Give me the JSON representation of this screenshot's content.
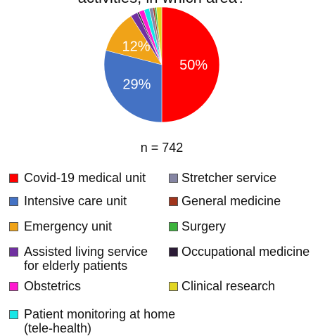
{
  "chart_data": {
    "type": "pie",
    "title": "activities, in which area?",
    "subtitle": "n = 742",
    "categories": [
      "Covid-19 medical unit",
      "Intensive care unit",
      "Emergency unit",
      "Assisted living service\nfor elderly patients",
      "Occupational medicine",
      "Obstetrics",
      "Patient monitoring at home\n(tele-health)",
      "Stretcher service",
      "General medicine",
      "Surgery",
      "Clinical research"
    ],
    "values": [
      50,
      29,
      12,
      2,
      0.5,
      1.5,
      1.5,
      1,
      0.5,
      0.5,
      1.5
    ],
    "value_labels": [
      "50%",
      "29%",
      "12%",
      null,
      null,
      null,
      null,
      null,
      null,
      null,
      null
    ],
    "colors": [
      "#ff0000",
      "#4472c4",
      "#f0a318",
      "#7030a0",
      "#2b1b36",
      "#ff1ad0",
      "#16e6e6",
      "#8585a3",
      "#a0341c",
      "#3cb33c",
      "#e2d622"
    ]
  }
}
